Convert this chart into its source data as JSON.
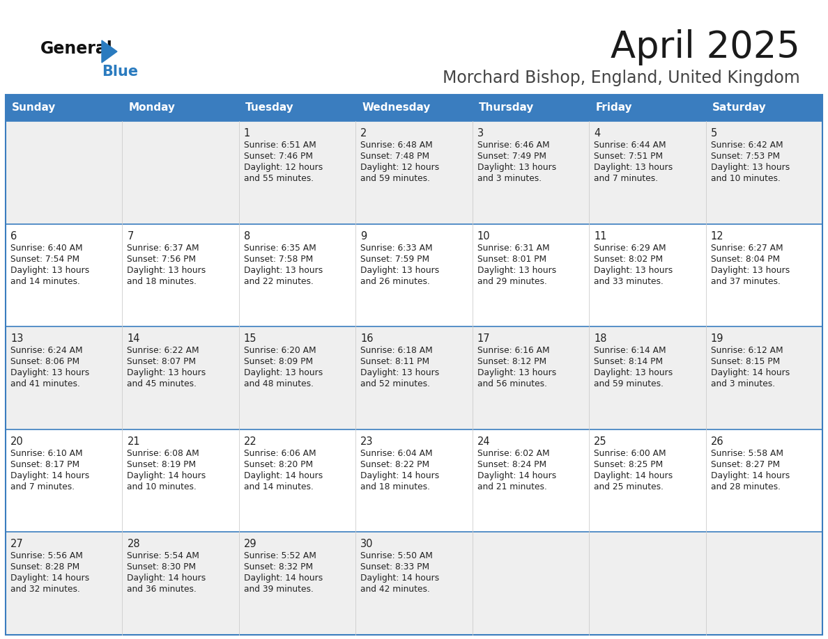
{
  "title": "April 2025",
  "subtitle": "Morchard Bishop, England, United Kingdom",
  "header_bg_color": "#3a7dbf",
  "header_text_color": "#ffffff",
  "day_names": [
    "Sunday",
    "Monday",
    "Tuesday",
    "Wednesday",
    "Thursday",
    "Friday",
    "Saturday"
  ],
  "row_bg_colors": [
    "#efefef",
    "#ffffff",
    "#efefef",
    "#ffffff",
    "#efefef"
  ],
  "border_color": "#3a7dbf",
  "cell_text_color": "#222222",
  "day_num_color": "#222222",
  "title_color": "#1a1a1a",
  "subtitle_color": "#444444",
  "logo_general_color": "#111111",
  "logo_blue_color": "#2a7bbf",
  "weeks": [
    [
      {
        "day": "",
        "sunrise": "",
        "sunset": "",
        "daylight": ""
      },
      {
        "day": "",
        "sunrise": "",
        "sunset": "",
        "daylight": ""
      },
      {
        "day": "1",
        "sunrise": "Sunrise: 6:51 AM",
        "sunset": "Sunset: 7:46 PM",
        "daylight": "Daylight: 12 hours\nand 55 minutes."
      },
      {
        "day": "2",
        "sunrise": "Sunrise: 6:48 AM",
        "sunset": "Sunset: 7:48 PM",
        "daylight": "Daylight: 12 hours\nand 59 minutes."
      },
      {
        "day": "3",
        "sunrise": "Sunrise: 6:46 AM",
        "sunset": "Sunset: 7:49 PM",
        "daylight": "Daylight: 13 hours\nand 3 minutes."
      },
      {
        "day": "4",
        "sunrise": "Sunrise: 6:44 AM",
        "sunset": "Sunset: 7:51 PM",
        "daylight": "Daylight: 13 hours\nand 7 minutes."
      },
      {
        "day": "5",
        "sunrise": "Sunrise: 6:42 AM",
        "sunset": "Sunset: 7:53 PM",
        "daylight": "Daylight: 13 hours\nand 10 minutes."
      }
    ],
    [
      {
        "day": "6",
        "sunrise": "Sunrise: 6:40 AM",
        "sunset": "Sunset: 7:54 PM",
        "daylight": "Daylight: 13 hours\nand 14 minutes."
      },
      {
        "day": "7",
        "sunrise": "Sunrise: 6:37 AM",
        "sunset": "Sunset: 7:56 PM",
        "daylight": "Daylight: 13 hours\nand 18 minutes."
      },
      {
        "day": "8",
        "sunrise": "Sunrise: 6:35 AM",
        "sunset": "Sunset: 7:58 PM",
        "daylight": "Daylight: 13 hours\nand 22 minutes."
      },
      {
        "day": "9",
        "sunrise": "Sunrise: 6:33 AM",
        "sunset": "Sunset: 7:59 PM",
        "daylight": "Daylight: 13 hours\nand 26 minutes."
      },
      {
        "day": "10",
        "sunrise": "Sunrise: 6:31 AM",
        "sunset": "Sunset: 8:01 PM",
        "daylight": "Daylight: 13 hours\nand 29 minutes."
      },
      {
        "day": "11",
        "sunrise": "Sunrise: 6:29 AM",
        "sunset": "Sunset: 8:02 PM",
        "daylight": "Daylight: 13 hours\nand 33 minutes."
      },
      {
        "day": "12",
        "sunrise": "Sunrise: 6:27 AM",
        "sunset": "Sunset: 8:04 PM",
        "daylight": "Daylight: 13 hours\nand 37 minutes."
      }
    ],
    [
      {
        "day": "13",
        "sunrise": "Sunrise: 6:24 AM",
        "sunset": "Sunset: 8:06 PM",
        "daylight": "Daylight: 13 hours\nand 41 minutes."
      },
      {
        "day": "14",
        "sunrise": "Sunrise: 6:22 AM",
        "sunset": "Sunset: 8:07 PM",
        "daylight": "Daylight: 13 hours\nand 45 minutes."
      },
      {
        "day": "15",
        "sunrise": "Sunrise: 6:20 AM",
        "sunset": "Sunset: 8:09 PM",
        "daylight": "Daylight: 13 hours\nand 48 minutes."
      },
      {
        "day": "16",
        "sunrise": "Sunrise: 6:18 AM",
        "sunset": "Sunset: 8:11 PM",
        "daylight": "Daylight: 13 hours\nand 52 minutes."
      },
      {
        "day": "17",
        "sunrise": "Sunrise: 6:16 AM",
        "sunset": "Sunset: 8:12 PM",
        "daylight": "Daylight: 13 hours\nand 56 minutes."
      },
      {
        "day": "18",
        "sunrise": "Sunrise: 6:14 AM",
        "sunset": "Sunset: 8:14 PM",
        "daylight": "Daylight: 13 hours\nand 59 minutes."
      },
      {
        "day": "19",
        "sunrise": "Sunrise: 6:12 AM",
        "sunset": "Sunset: 8:15 PM",
        "daylight": "Daylight: 14 hours\nand 3 minutes."
      }
    ],
    [
      {
        "day": "20",
        "sunrise": "Sunrise: 6:10 AM",
        "sunset": "Sunset: 8:17 PM",
        "daylight": "Daylight: 14 hours\nand 7 minutes."
      },
      {
        "day": "21",
        "sunrise": "Sunrise: 6:08 AM",
        "sunset": "Sunset: 8:19 PM",
        "daylight": "Daylight: 14 hours\nand 10 minutes."
      },
      {
        "day": "22",
        "sunrise": "Sunrise: 6:06 AM",
        "sunset": "Sunset: 8:20 PM",
        "daylight": "Daylight: 14 hours\nand 14 minutes."
      },
      {
        "day": "23",
        "sunrise": "Sunrise: 6:04 AM",
        "sunset": "Sunset: 8:22 PM",
        "daylight": "Daylight: 14 hours\nand 18 minutes."
      },
      {
        "day": "24",
        "sunrise": "Sunrise: 6:02 AM",
        "sunset": "Sunset: 8:24 PM",
        "daylight": "Daylight: 14 hours\nand 21 minutes."
      },
      {
        "day": "25",
        "sunrise": "Sunrise: 6:00 AM",
        "sunset": "Sunset: 8:25 PM",
        "daylight": "Daylight: 14 hours\nand 25 minutes."
      },
      {
        "day": "26",
        "sunrise": "Sunrise: 5:58 AM",
        "sunset": "Sunset: 8:27 PM",
        "daylight": "Daylight: 14 hours\nand 28 minutes."
      }
    ],
    [
      {
        "day": "27",
        "sunrise": "Sunrise: 5:56 AM",
        "sunset": "Sunset: 8:28 PM",
        "daylight": "Daylight: 14 hours\nand 32 minutes."
      },
      {
        "day": "28",
        "sunrise": "Sunrise: 5:54 AM",
        "sunset": "Sunset: 8:30 PM",
        "daylight": "Daylight: 14 hours\nand 36 minutes."
      },
      {
        "day": "29",
        "sunrise": "Sunrise: 5:52 AM",
        "sunset": "Sunset: 8:32 PM",
        "daylight": "Daylight: 14 hours\nand 39 minutes."
      },
      {
        "day": "30",
        "sunrise": "Sunrise: 5:50 AM",
        "sunset": "Sunset: 8:33 PM",
        "daylight": "Daylight: 14 hours\nand 42 minutes."
      },
      {
        "day": "",
        "sunrise": "",
        "sunset": "",
        "daylight": ""
      },
      {
        "day": "",
        "sunrise": "",
        "sunset": "",
        "daylight": ""
      },
      {
        "day": "",
        "sunrise": "",
        "sunset": "",
        "daylight": ""
      }
    ]
  ]
}
